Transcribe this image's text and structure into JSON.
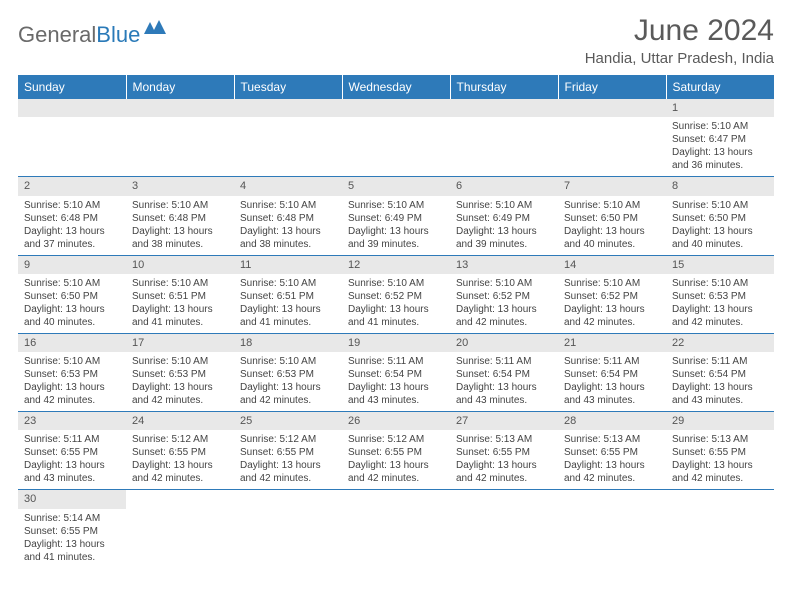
{
  "logo": {
    "part1": "General",
    "part2": "Blue"
  },
  "title": "June 2024",
  "location": "Handia, Uttar Pradesh, India",
  "styling": {
    "header_bg": "#2e7ab9",
    "header_text_color": "#ffffff",
    "daynum_bg": "#e8e8e8",
    "border_color": "#2e7ab9",
    "title_color": "#5a5a5a",
    "body_text_color": "#444444",
    "title_fontsize": 30,
    "location_fontsize": 15,
    "th_fontsize": 12,
    "cell_fontsize": 10
  },
  "weekdays": [
    "Sunday",
    "Monday",
    "Tuesday",
    "Wednesday",
    "Thursday",
    "Friday",
    "Saturday"
  ],
  "d": {
    "1": {
      "n": "1",
      "r": "Sunrise: 5:10 AM",
      "s": "Sunset: 6:47 PM",
      "l1": "Daylight: 13 hours",
      "l2": "and 36 minutes."
    },
    "2": {
      "n": "2",
      "r": "Sunrise: 5:10 AM",
      "s": "Sunset: 6:48 PM",
      "l1": "Daylight: 13 hours",
      "l2": "and 37 minutes."
    },
    "3": {
      "n": "3",
      "r": "Sunrise: 5:10 AM",
      "s": "Sunset: 6:48 PM",
      "l1": "Daylight: 13 hours",
      "l2": "and 38 minutes."
    },
    "4": {
      "n": "4",
      "r": "Sunrise: 5:10 AM",
      "s": "Sunset: 6:48 PM",
      "l1": "Daylight: 13 hours",
      "l2": "and 38 minutes."
    },
    "5": {
      "n": "5",
      "r": "Sunrise: 5:10 AM",
      "s": "Sunset: 6:49 PM",
      "l1": "Daylight: 13 hours",
      "l2": "and 39 minutes."
    },
    "6": {
      "n": "6",
      "r": "Sunrise: 5:10 AM",
      "s": "Sunset: 6:49 PM",
      "l1": "Daylight: 13 hours",
      "l2": "and 39 minutes."
    },
    "7": {
      "n": "7",
      "r": "Sunrise: 5:10 AM",
      "s": "Sunset: 6:50 PM",
      "l1": "Daylight: 13 hours",
      "l2": "and 40 minutes."
    },
    "8": {
      "n": "8",
      "r": "Sunrise: 5:10 AM",
      "s": "Sunset: 6:50 PM",
      "l1": "Daylight: 13 hours",
      "l2": "and 40 minutes."
    },
    "9": {
      "n": "9",
      "r": "Sunrise: 5:10 AM",
      "s": "Sunset: 6:50 PM",
      "l1": "Daylight: 13 hours",
      "l2": "and 40 minutes."
    },
    "10": {
      "n": "10",
      "r": "Sunrise: 5:10 AM",
      "s": "Sunset: 6:51 PM",
      "l1": "Daylight: 13 hours",
      "l2": "and 41 minutes."
    },
    "11": {
      "n": "11",
      "r": "Sunrise: 5:10 AM",
      "s": "Sunset: 6:51 PM",
      "l1": "Daylight: 13 hours",
      "l2": "and 41 minutes."
    },
    "12": {
      "n": "12",
      "r": "Sunrise: 5:10 AM",
      "s": "Sunset: 6:52 PM",
      "l1": "Daylight: 13 hours",
      "l2": "and 41 minutes."
    },
    "13": {
      "n": "13",
      "r": "Sunrise: 5:10 AM",
      "s": "Sunset: 6:52 PM",
      "l1": "Daylight: 13 hours",
      "l2": "and 42 minutes."
    },
    "14": {
      "n": "14",
      "r": "Sunrise: 5:10 AM",
      "s": "Sunset: 6:52 PM",
      "l1": "Daylight: 13 hours",
      "l2": "and 42 minutes."
    },
    "15": {
      "n": "15",
      "r": "Sunrise: 5:10 AM",
      "s": "Sunset: 6:53 PM",
      "l1": "Daylight: 13 hours",
      "l2": "and 42 minutes."
    },
    "16": {
      "n": "16",
      "r": "Sunrise: 5:10 AM",
      "s": "Sunset: 6:53 PM",
      "l1": "Daylight: 13 hours",
      "l2": "and 42 minutes."
    },
    "17": {
      "n": "17",
      "r": "Sunrise: 5:10 AM",
      "s": "Sunset: 6:53 PM",
      "l1": "Daylight: 13 hours",
      "l2": "and 42 minutes."
    },
    "18": {
      "n": "18",
      "r": "Sunrise: 5:10 AM",
      "s": "Sunset: 6:53 PM",
      "l1": "Daylight: 13 hours",
      "l2": "and 42 minutes."
    },
    "19": {
      "n": "19",
      "r": "Sunrise: 5:11 AM",
      "s": "Sunset: 6:54 PM",
      "l1": "Daylight: 13 hours",
      "l2": "and 43 minutes."
    },
    "20": {
      "n": "20",
      "r": "Sunrise: 5:11 AM",
      "s": "Sunset: 6:54 PM",
      "l1": "Daylight: 13 hours",
      "l2": "and 43 minutes."
    },
    "21": {
      "n": "21",
      "r": "Sunrise: 5:11 AM",
      "s": "Sunset: 6:54 PM",
      "l1": "Daylight: 13 hours",
      "l2": "and 43 minutes."
    },
    "22": {
      "n": "22",
      "r": "Sunrise: 5:11 AM",
      "s": "Sunset: 6:54 PM",
      "l1": "Daylight: 13 hours",
      "l2": "and 43 minutes."
    },
    "23": {
      "n": "23",
      "r": "Sunrise: 5:11 AM",
      "s": "Sunset: 6:55 PM",
      "l1": "Daylight: 13 hours",
      "l2": "and 43 minutes."
    },
    "24": {
      "n": "24",
      "r": "Sunrise: 5:12 AM",
      "s": "Sunset: 6:55 PM",
      "l1": "Daylight: 13 hours",
      "l2": "and 42 minutes."
    },
    "25": {
      "n": "25",
      "r": "Sunrise: 5:12 AM",
      "s": "Sunset: 6:55 PM",
      "l1": "Daylight: 13 hours",
      "l2": "and 42 minutes."
    },
    "26": {
      "n": "26",
      "r": "Sunrise: 5:12 AM",
      "s": "Sunset: 6:55 PM",
      "l1": "Daylight: 13 hours",
      "l2": "and 42 minutes."
    },
    "27": {
      "n": "27",
      "r": "Sunrise: 5:13 AM",
      "s": "Sunset: 6:55 PM",
      "l1": "Daylight: 13 hours",
      "l2": "and 42 minutes."
    },
    "28": {
      "n": "28",
      "r": "Sunrise: 5:13 AM",
      "s": "Sunset: 6:55 PM",
      "l1": "Daylight: 13 hours",
      "l2": "and 42 minutes."
    },
    "29": {
      "n": "29",
      "r": "Sunrise: 5:13 AM",
      "s": "Sunset: 6:55 PM",
      "l1": "Daylight: 13 hours",
      "l2": "and 42 minutes."
    },
    "30": {
      "n": "30",
      "r": "Sunrise: 5:14 AM",
      "s": "Sunset: 6:55 PM",
      "l1": "Daylight: 13 hours",
      "l2": "and 41 minutes."
    }
  }
}
